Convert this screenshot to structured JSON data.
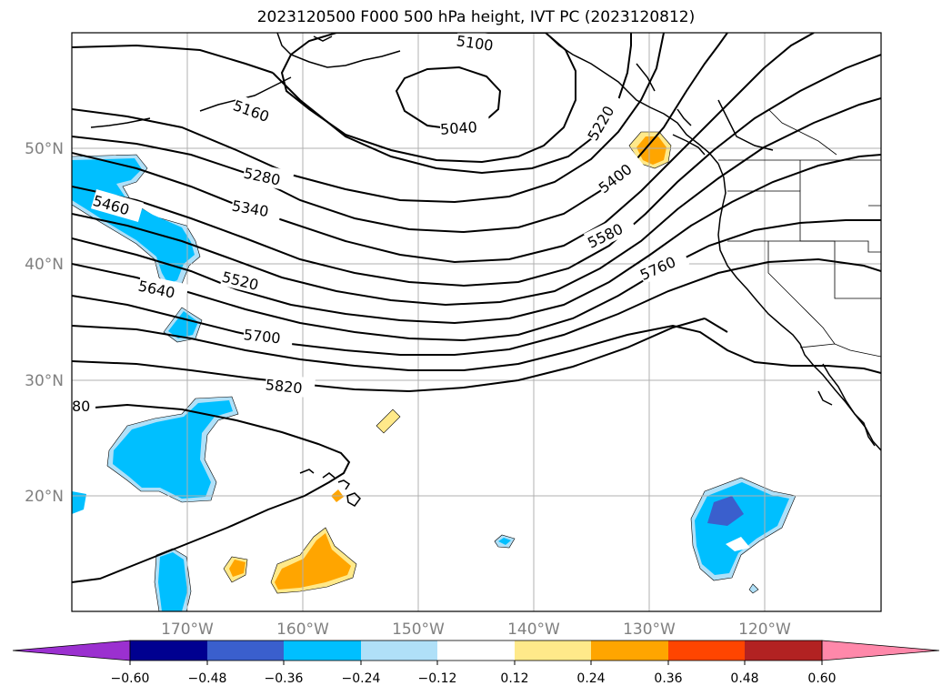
{
  "title": "2023120500 F000 500 hPa height, IVT PC (2023120812)",
  "lat_labels": [
    "50°N",
    "40°N",
    "30°N",
    "20°N"
  ],
  "lon_labels": [
    "170°W",
    "160°W",
    "150°W",
    "140°W",
    "130°W",
    "120°W"
  ],
  "contour_labels": [
    "5100",
    "5040",
    "5160",
    "5220",
    "5280",
    "5340",
    "5400",
    "5460",
    "5520",
    "5580",
    "5640",
    "5700",
    "5760",
    "5820",
    "80"
  ],
  "colorbar": {
    "ticks": [
      "−0.60",
      "−0.48",
      "−0.36",
      "−0.24",
      "−0.12",
      "0.12",
      "0.24",
      "0.36",
      "0.48",
      "0.60"
    ],
    "colors": [
      "#9b30d0",
      "#000090",
      "#3a5fcd",
      "#00bfff",
      "#b0e0f8",
      "#ffffff",
      "#ffe98a",
      "#ffa500",
      "#ff4500",
      "#b22222",
      "#ff88aa"
    ]
  },
  "fill_colors": {
    "neg_light": "#b0e0f8",
    "neg_mid": "#00bfff",
    "neg_dark": "#3a5fcd",
    "pos_light": "#ffe98a",
    "pos_mid": "#ffa500"
  }
}
